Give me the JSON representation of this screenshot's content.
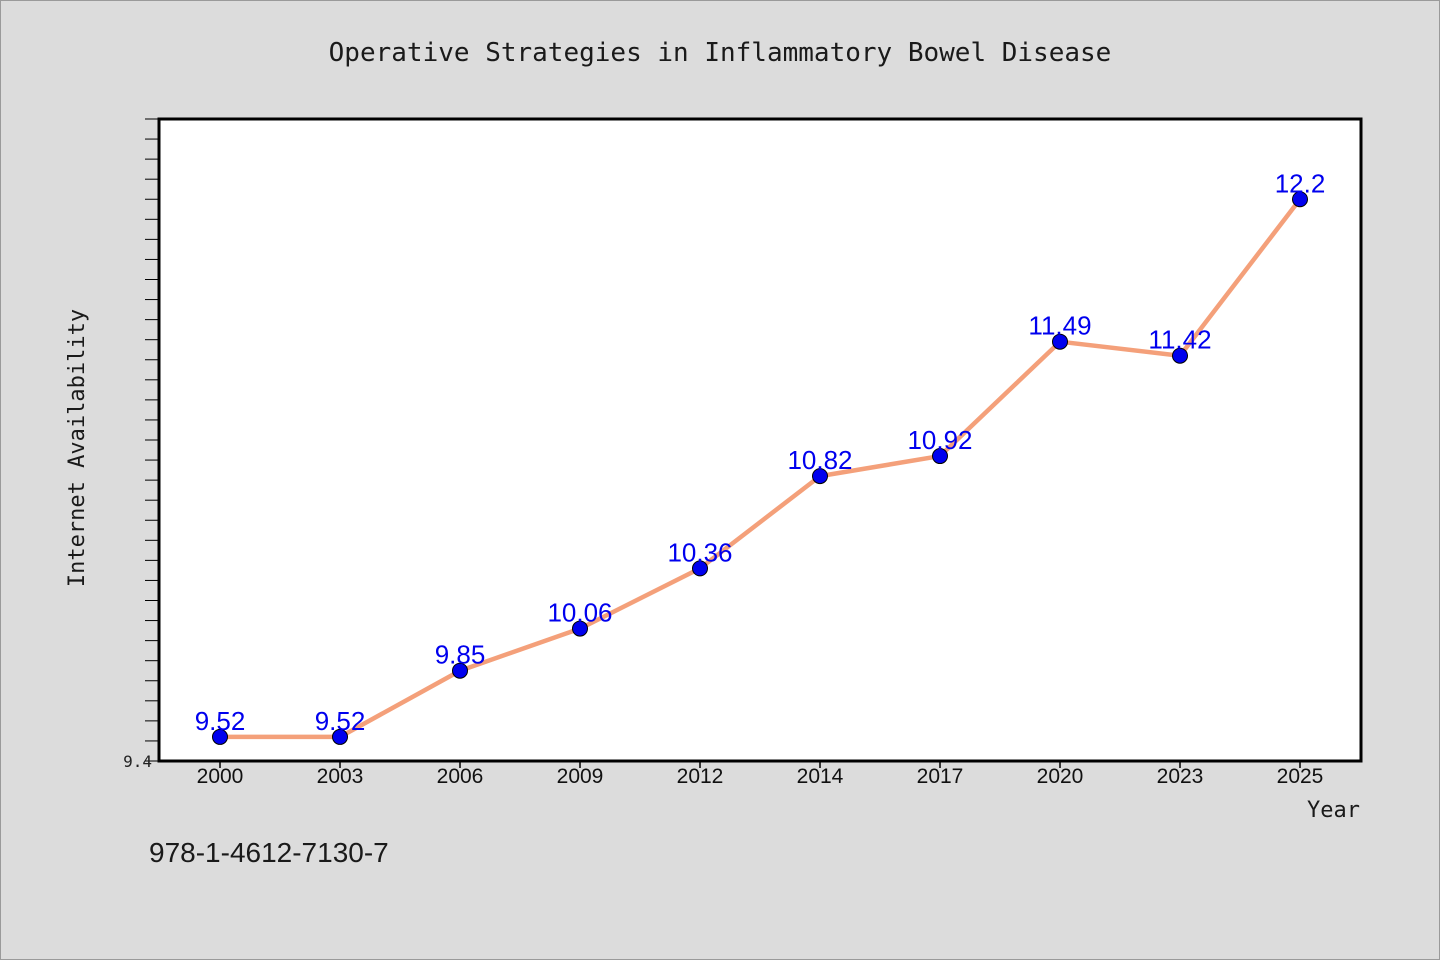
{
  "chart_data": {
    "type": "line",
    "title": "Operative Strategies in Inflammatory Bowel Disease",
    "xlabel": "Year",
    "ylabel": "Internet Availability",
    "categories": [
      "2000",
      "2003",
      "2006",
      "2009",
      "2012",
      "2014",
      "2017",
      "2020",
      "2023",
      "2025"
    ],
    "series": [
      {
        "values": [
          9.52,
          9.52,
          9.85,
          10.06,
          10.36,
          10.82,
          10.92,
          11.49,
          11.42,
          12.2
        ],
        "labels": [
          "9.52",
          "9.52",
          "9.85",
          "10.06",
          "10.36",
          "10.82",
          "10.92",
          "11.49",
          "11.42",
          "12.2"
        ]
      }
    ],
    "ylim": [
      9.4,
      12.6
    ],
    "yticks_labeled": [
      "9.4"
    ],
    "grid": false,
    "legend": "none",
    "colors": {
      "line": "#f4a07a",
      "marker": "#0000ee",
      "data_label": "#0000ee",
      "background": "#dcdcdc",
      "plot_background": "#ffffff"
    }
  },
  "footnote": "978-1-4612-7130-7"
}
